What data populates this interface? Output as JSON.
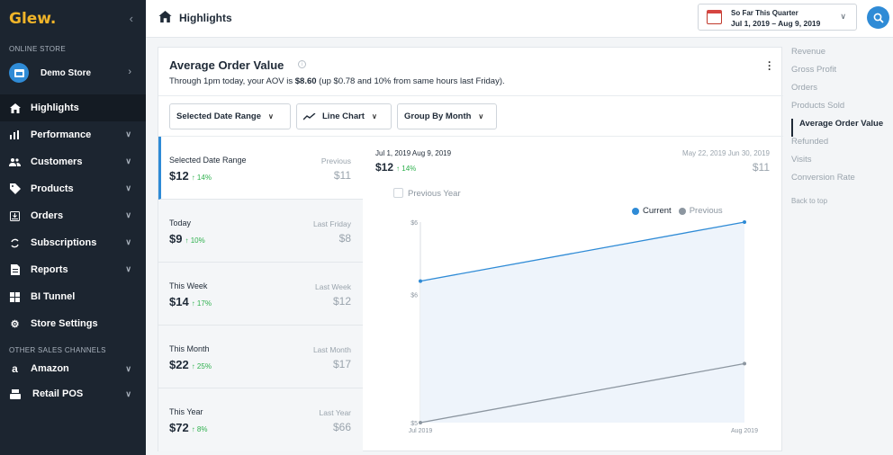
{
  "sidebar": {
    "logo": "Glew.",
    "collapse_icon": "chevron-left-icon",
    "online_store_label": "ONLINE STORE",
    "store_name": "Demo Store",
    "items": [
      {
        "label": "Highlights",
        "icon": "home-icon",
        "active": true
      },
      {
        "label": "Performance",
        "icon": "bar-chart-icon"
      },
      {
        "label": "Customers",
        "icon": "users-icon"
      },
      {
        "label": "Products",
        "icon": "tag-icon"
      },
      {
        "label": "Orders",
        "icon": "download-box-icon"
      },
      {
        "label": "Subscriptions",
        "icon": "refresh-icon"
      },
      {
        "label": "Reports",
        "icon": "document-icon"
      },
      {
        "label": "BI Tunnel",
        "icon": "grid-icon"
      },
      {
        "label": "Store Settings",
        "icon": "gear-icon"
      }
    ],
    "other_channels_label": "OTHER SALES CHANNELS",
    "channels": [
      {
        "label": "Amazon",
        "icon": "amazon-icon"
      },
      {
        "label": "Retail POS",
        "icon": "register-icon"
      }
    ]
  },
  "header": {
    "title": "Highlights",
    "date_title": "So Far This Quarter",
    "date_range": "Jul 1, 2019 – Aug 9, 2019"
  },
  "card": {
    "title": "Average Order Value",
    "subtitle_prefix": "Through 1pm today, your AOV is ",
    "subtitle_value": "$8.60",
    "subtitle_suffix": " (up $0.78 and 10% from same hours last Friday).",
    "toolbar": {
      "date_dropdown": "Selected Date Range",
      "chart_dropdown": "Line Chart",
      "group_dropdown": "Group By Month"
    },
    "comparisons": [
      {
        "label": "Selected Date Range",
        "value": "$12",
        "change": "↑ 14%",
        "prev_label": "Previous",
        "prev_value": "$11"
      },
      {
        "label": "Today",
        "value": "$9",
        "change": "↑ 10%",
        "prev_label": "Last Friday",
        "prev_value": "$8"
      },
      {
        "label": "This Week",
        "value": "$14",
        "change": "↑ 17%",
        "prev_label": "Last Week",
        "prev_value": "$12"
      },
      {
        "label": "This Month",
        "value": "$22",
        "change": "↑ 25%",
        "prev_label": "Last Month",
        "prev_value": "$17"
      },
      {
        "label": "This Year",
        "value": "$72",
        "change": "↑ 8%",
        "prev_label": "Last Year",
        "prev_value": "$66"
      }
    ],
    "chart_header": {
      "current_range": "Jul 1, 2019 Aug 9, 2019",
      "current_value": "$12",
      "current_change": "↑ 14%",
      "previous_range": "May 22, 2019 Jun 30, 2019",
      "previous_value": "$11"
    },
    "previous_year_label": "Previous Year"
  },
  "chart_data": {
    "type": "line",
    "categories": [
      "Jul 2019",
      "Aug 2019"
    ],
    "y_ticks": [
      "$6",
      "$6",
      "$5"
    ],
    "ylim": [
      5,
      6.7
    ],
    "series": [
      {
        "name": "Current",
        "values": [
          6.2,
          6.7
        ],
        "color": "#2f8bd6"
      },
      {
        "name": "Previous",
        "values": [
          5.0,
          5.5
        ],
        "color": "#8c96a0"
      }
    ],
    "legend_position": "top-right",
    "grid": false
  },
  "rightnav": {
    "items": [
      "Revenue",
      "Gross Profit",
      "Orders",
      "Products Sold",
      "Average Order Value",
      "Refunded",
      "Visits",
      "Conversion Rate"
    ],
    "active_index": 4,
    "back_to_top": "Back to top"
  }
}
